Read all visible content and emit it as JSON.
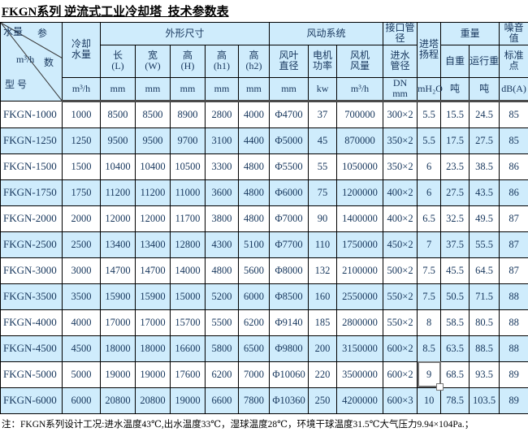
{
  "title": "FKGN系列 逆流式工业冷却塔  技术参数表",
  "colors": {
    "header_bg": "#cfecfc",
    "row_alt_bg": "#cfecfc",
    "header_text": "#17365d",
    "border": "#000000",
    "header_separator": "#4a4a4a",
    "selection_outline": "#777777"
  },
  "table": {
    "diagonal": {
      "top_left": "水量",
      "top_right": "参",
      "mid_left": "m³/h",
      "mid_right": "数",
      "bottom_left": "型 号"
    },
    "header_row1": {
      "cooling": "冷却\n水量",
      "dims": "外形尺寸",
      "fan_system": "风动系统",
      "pipe": "接口管径",
      "head": "进塔\n扬程",
      "weight": "重量",
      "noise": "噪音值"
    },
    "header_row2": {
      "length": "长\n(L)",
      "width": "宽\n(W)",
      "height": "高\n(H)",
      "height_h1": "高\n(h1)",
      "height_h2": "高\n(h2)",
      "blade_dia": "风叶\n直径",
      "motor_power": "电机\n功率",
      "fan_airflow": "风机\n风量",
      "inlet_pipe": "进水\n管径",
      "self_weight": "自重",
      "run_weight": "运行重",
      "std_point": "标准点"
    },
    "units": {
      "cooling": "m³/h",
      "l": "mm",
      "w": "mm",
      "h": "mm",
      "h1": "mm",
      "h2": "mm",
      "blade": "mm",
      "motor": "kw",
      "airflow": "m³/h",
      "inlet": "DN\nmm",
      "head": "mH₂O",
      "self_weight": "吨",
      "run_weight": "吨",
      "noise": "dB(A)"
    },
    "rows": [
      [
        "FKGN-1000",
        "1000",
        "8500",
        "8500",
        "8900",
        "2800",
        "4000",
        "Φ4700",
        "37",
        "700000",
        "300×2",
        "5.5",
        "15.5",
        "24.5",
        "85"
      ],
      [
        "FKGN-1250",
        "1250",
        "9500",
        "9500",
        "9700",
        "3100",
        "4400",
        "Φ5000",
        "45",
        "870000",
        "350×2",
        "5.5",
        "17.5",
        "27.5",
        "85"
      ],
      [
        "FKGN-1500",
        "1500",
        "10400",
        "10400",
        "10500",
        "3300",
        "4800",
        "Φ5500",
        "55",
        "1050000",
        "350×2",
        "6",
        "23.5",
        "38.5",
        "86"
      ],
      [
        "FKGN-1750",
        "1750",
        "11200",
        "11200",
        "11000",
        "3600",
        "4800",
        "Φ6000",
        "75",
        "1200000",
        "400×2",
        "6",
        "27.5",
        "43.5",
        "86"
      ],
      [
        "FKGN-2000",
        "2000",
        "12000",
        "12000",
        "11700",
        "3800",
        "4800",
        "Φ7000",
        "90",
        "1400000",
        "400×2",
        "6.5",
        "32.5",
        "49.5",
        "87"
      ],
      [
        "FKGN-2500",
        "2500",
        "13400",
        "13400",
        "12800",
        "4300",
        "5100",
        "Φ7700",
        "110",
        "1750000",
        "450×2",
        "7",
        "37.5",
        "55.5",
        "87"
      ],
      [
        "FKGN-3000",
        "3000",
        "14700",
        "14700",
        "14000",
        "4800",
        "5600",
        "Φ8000",
        "132",
        "2100000",
        "500×2",
        "7.5",
        "45.5",
        "64.5",
        "87"
      ],
      [
        "FKGN-3500",
        "3500",
        "15900",
        "15900",
        "15000",
        "5200",
        "6000",
        "Φ8500",
        "160",
        "2550000",
        "550×2",
        "7.5",
        "50.5",
        "71.5",
        "88"
      ],
      [
        "FKGN-4000",
        "4000",
        "17000",
        "17000",
        "15700",
        "5500",
        "6200",
        "Φ9140",
        "185",
        "2800000",
        "550×2",
        "8",
        "58.5",
        "80.5",
        "88"
      ],
      [
        "FKGN-4500",
        "4500",
        "18000",
        "18000",
        "16600",
        "5800",
        "6500",
        "Φ9800",
        "200",
        "3150000",
        "600×2",
        "8.5",
        "63.5",
        "88.5",
        "88"
      ],
      [
        "FKGN-5000",
        "5000",
        "19000",
        "19000",
        "17600",
        "6200",
        "7000",
        "Φ10060",
        "220",
        "3500000",
        "600×2",
        "9",
        "68.5",
        "93.5",
        "89"
      ],
      [
        "FKGN-6000",
        "6000",
        "20800",
        "20800",
        "19000",
        "6600",
        "7800",
        "Φ10360",
        "250",
        "4200000",
        "600×3",
        "10",
        "78.5",
        "103.5",
        "89"
      ]
    ],
    "selected": {
      "row": 10,
      "col": 11
    }
  },
  "note": "注：FKGN系列设计工况:进水温度43℃,出水温度33℃，湿球温度28℃，环境干球温度31.5℃大气压力9.94×104Pa.；"
}
